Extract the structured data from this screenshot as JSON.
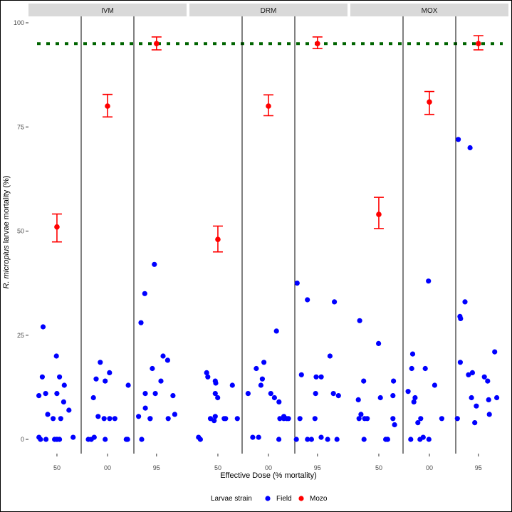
{
  "chart_data": {
    "type": "scatter",
    "panels": [
      "IVM",
      "DRM",
      "MOX"
    ],
    "dose_labels": [
      "50",
      "00",
      "95"
    ],
    "xlabel": "Effective Dose (% mortality)",
    "ylabel_italic": "R. microplus",
    "ylabel_rest": " larvae mortality (%)",
    "ylim": [
      0,
      100
    ],
    "yticks": [
      0,
      25,
      50,
      75,
      100
    ],
    "reference_line": 95,
    "legend": {
      "title": "Larvae strain",
      "position": "bottom",
      "entries": [
        "Field",
        "Mozo"
      ]
    },
    "colors": {
      "Field": "#0000ff",
      "Mozo": "#ff0000",
      "reference": "#006400"
    },
    "series": [
      {
        "name": "Mozo",
        "points": [
          {
            "panel": "IVM",
            "dose": "50",
            "y": 51,
            "low": 47.4,
            "high": 54.1
          },
          {
            "panel": "IVM",
            "dose": "00",
            "y": 80,
            "low": 77.4,
            "high": 82.8
          },
          {
            "panel": "IVM",
            "dose": "95",
            "y": 95,
            "low": 93.5,
            "high": 96.6
          },
          {
            "panel": "DRM",
            "dose": "50",
            "y": 48,
            "low": 45.0,
            "high": 51.2
          },
          {
            "panel": "DRM",
            "dose": "00",
            "y": 80,
            "low": 77.7,
            "high": 82.7
          },
          {
            "panel": "DRM",
            "dose": "95",
            "y": 95,
            "low": 93.8,
            "high": 96.6
          },
          {
            "panel": "MOX",
            "dose": "50",
            "y": 54,
            "low": 50.6,
            "high": 58.1
          },
          {
            "panel": "MOX",
            "dose": "00",
            "y": 81,
            "low": 78.0,
            "high": 83.5
          },
          {
            "panel": "MOX",
            "dose": "95",
            "y": 95,
            "low": 93.5,
            "high": 96.9
          }
        ]
      },
      {
        "name": "Field",
        "points": [
          {
            "panel": "IVM",
            "dose": "50",
            "y": [
              0,
              0,
              0,
              0,
              0,
              0,
              0.5,
              0.5,
              5,
              5,
              6,
              7,
              9,
              10.5,
              11,
              11,
              13,
              15,
              15,
              20,
              27
            ]
          },
          {
            "panel": "IVM",
            "dose": "00",
            "y": [
              0,
              0,
              0,
              0,
              0,
              0,
              0.5,
              5,
              5,
              5,
              5.5,
              10,
              13,
              14,
              14.5,
              16,
              18.5
            ]
          },
          {
            "panel": "IVM",
            "dose": "95",
            "y": [
              0,
              5,
              5,
              5,
              5.5,
              6,
              7.5,
              10.5,
              11,
              11,
              14,
              17,
              19,
              20,
              28,
              35,
              42
            ]
          },
          {
            "panel": "DRM",
            "dose": "50",
            "y": [
              0,
              0.5,
              4.5,
              5,
              5,
              5,
              5,
              5.5,
              10,
              11,
              13,
              13.5,
              14,
              15,
              16
            ]
          },
          {
            "panel": "DRM",
            "dose": "00",
            "y": [
              0,
              0.5,
              0.5,
              5,
              5,
              5,
              5,
              5.5,
              9,
              10,
              11,
              11,
              13,
              14.5,
              17,
              18.5,
              26
            ]
          },
          {
            "panel": "DRM",
            "dose": "95",
            "y": [
              0,
              0,
              0,
              0,
              0,
              0.5,
              5,
              5,
              10.5,
              11,
              11,
              15,
              15,
              15.5,
              20,
              33,
              33.5,
              37.5
            ]
          },
          {
            "panel": "MOX",
            "dose": "50",
            "y": [
              0,
              0,
              0,
              0,
              3.5,
              5,
              5,
              5,
              5,
              6,
              9.5,
              10,
              10.5,
              14,
              14,
              23,
              28.5
            ]
          },
          {
            "panel": "MOX",
            "dose": "00",
            "y": [
              0,
              0,
              0,
              0.5,
              4,
              5,
              5,
              9,
              10,
              11.5,
              13,
              17,
              17,
              20.5,
              38
            ]
          },
          {
            "panel": "MOX",
            "dose": "95",
            "y": [
              4,
              5,
              6,
              8,
              9.5,
              10,
              10,
              14,
              15,
              15.5,
              16,
              18.5,
              21,
              29,
              29.5,
              33,
              70,
              72
            ]
          }
        ]
      }
    ]
  }
}
